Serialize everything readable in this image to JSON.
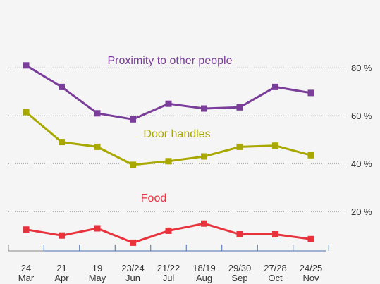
{
  "colors": {
    "background": "#f5f5f5",
    "grid": "#9a9a9a",
    "axis": "#4a6fb0",
    "text": "#333333"
  },
  "chart_data": {
    "type": "line",
    "title": "",
    "xlabel": "",
    "ylabel": "",
    "categories": [
      [
        "24",
        "Mar"
      ],
      [
        "21",
        "Apr"
      ],
      [
        "19",
        "May"
      ],
      [
        "23/24",
        "Jun"
      ],
      [
        "21/22",
        "Jul"
      ],
      [
        "18/19",
        "Aug"
      ],
      [
        "29/30",
        "Sep"
      ],
      [
        "27/28",
        "Oct"
      ],
      [
        "24/25",
        "Nov"
      ]
    ],
    "ylim": [
      0,
      90
    ],
    "yticks": [
      20,
      40,
      60,
      80
    ],
    "ytick_labels": [
      "20 %",
      "40 %",
      "60 %",
      "80 %"
    ],
    "grid": "horizontal dotted at 20, 40, 60, 80",
    "series": [
      {
        "name": "Proximity to other people",
        "color": "#7a3d9a",
        "values": [
          81,
          72,
          61,
          58.5,
          65,
          63,
          63.5,
          72,
          69.5
        ]
      },
      {
        "name": "Door handles",
        "color": "#a8a800",
        "values": [
          61.5,
          49,
          47,
          39.5,
          41,
          43,
          47,
          47.5,
          43.5
        ]
      },
      {
        "name": "Food",
        "color": "#e8323c",
        "values": [
          12.5,
          10,
          13,
          7,
          12,
          15,
          10.5,
          10.5,
          8.5
        ]
      }
    ]
  }
}
